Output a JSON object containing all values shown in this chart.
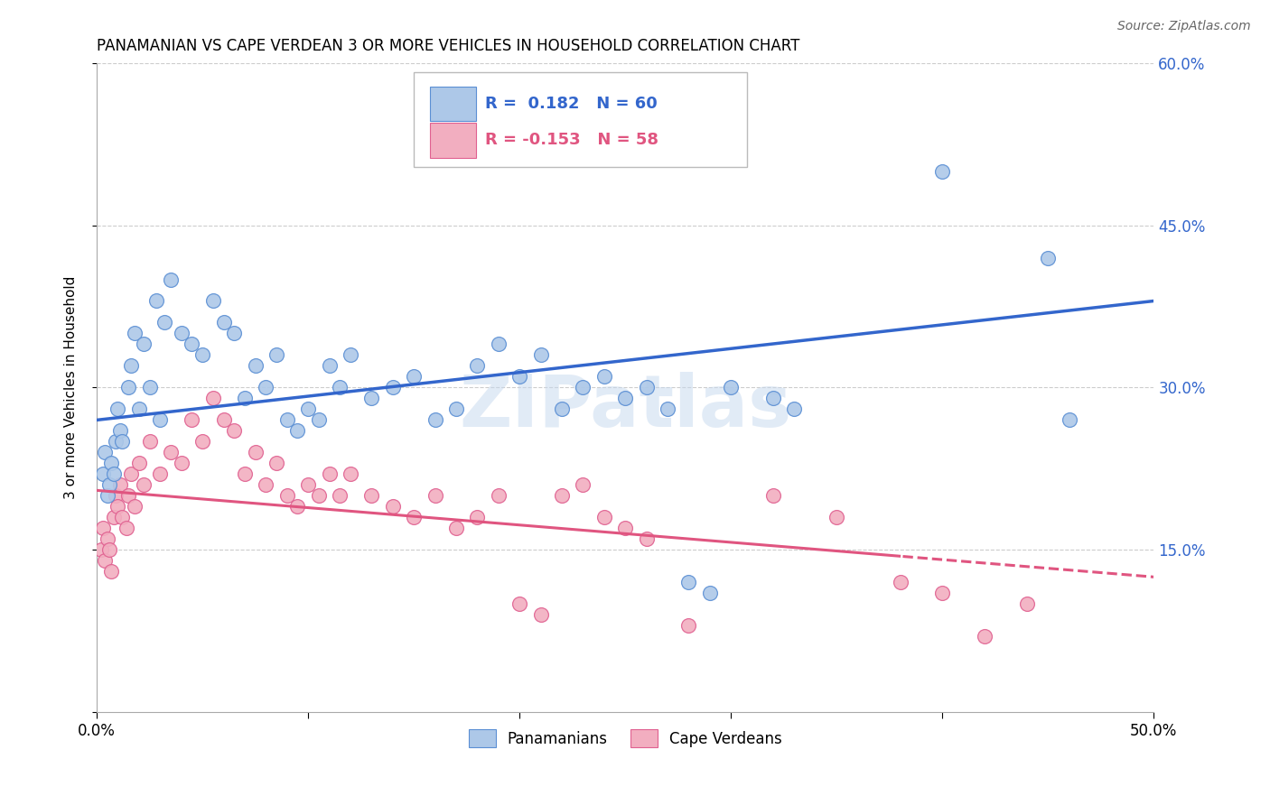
{
  "title": "PANAMANIAN VS CAPE VERDEAN 3 OR MORE VEHICLES IN HOUSEHOLD CORRELATION CHART",
  "source": "Source: ZipAtlas.com",
  "ylabel": "3 or more Vehicles in Household",
  "xlim": [
    0,
    50
  ],
  "ylim": [
    0,
    60
  ],
  "blue_R": 0.182,
  "blue_N": 60,
  "pink_R": -0.153,
  "pink_N": 58,
  "legend_label_blue": "Panamanians",
  "legend_label_pink": "Cape Verdeans",
  "blue_color": "#adc8e8",
  "pink_color": "#f2aec0",
  "blue_edge_color": "#5b8fd4",
  "pink_edge_color": "#e06090",
  "blue_line_color": "#3366cc",
  "pink_line_color": "#e05580",
  "watermark": "ZIPatlas",
  "blue_line_y0": 27.0,
  "blue_line_y50": 38.0,
  "pink_line_y0": 20.5,
  "pink_line_y50": 12.5,
  "blue_scatter_x": [
    0.3,
    0.4,
    0.5,
    0.6,
    0.7,
    0.8,
    0.9,
    1.0,
    1.1,
    1.2,
    1.5,
    1.6,
    1.8,
    2.0,
    2.2,
    2.5,
    2.8,
    3.0,
    3.2,
    3.5,
    4.0,
    4.5,
    5.0,
    5.5,
    6.0,
    6.5,
    7.0,
    7.5,
    8.0,
    8.5,
    9.0,
    9.5,
    10.0,
    10.5,
    11.0,
    11.5,
    12.0,
    13.0,
    14.0,
    15.0,
    16.0,
    17.0,
    18.0,
    19.0,
    20.0,
    21.0,
    22.0,
    23.0,
    24.0,
    25.0,
    26.0,
    27.0,
    28.0,
    29.0,
    30.0,
    32.0,
    33.0,
    40.0,
    45.0,
    46.0
  ],
  "blue_scatter_y": [
    22,
    24,
    20,
    21,
    23,
    22,
    25,
    28,
    26,
    25,
    30,
    32,
    35,
    28,
    34,
    30,
    38,
    27,
    36,
    40,
    35,
    34,
    33,
    38,
    36,
    35,
    29,
    32,
    30,
    33,
    27,
    26,
    28,
    27,
    32,
    30,
    33,
    29,
    30,
    31,
    27,
    28,
    32,
    34,
    31,
    33,
    28,
    30,
    31,
    29,
    30,
    28,
    12,
    11,
    30,
    29,
    28,
    50,
    42,
    27
  ],
  "pink_scatter_x": [
    0.2,
    0.3,
    0.4,
    0.5,
    0.6,
    0.7,
    0.8,
    0.9,
    1.0,
    1.1,
    1.2,
    1.4,
    1.5,
    1.6,
    1.8,
    2.0,
    2.2,
    2.5,
    3.0,
    3.5,
    4.0,
    4.5,
    5.0,
    5.5,
    6.0,
    6.5,
    7.0,
    7.5,
    8.0,
    8.5,
    9.0,
    9.5,
    10.0,
    10.5,
    11.0,
    11.5,
    12.0,
    13.0,
    14.0,
    15.0,
    16.0,
    17.0,
    18.0,
    19.0,
    20.0,
    21.0,
    22.0,
    23.0,
    24.0,
    25.0,
    26.0,
    28.0,
    32.0,
    35.0,
    38.0,
    40.0,
    42.0,
    44.0
  ],
  "pink_scatter_y": [
    15,
    17,
    14,
    16,
    15,
    13,
    18,
    20,
    19,
    21,
    18,
    17,
    20,
    22,
    19,
    23,
    21,
    25,
    22,
    24,
    23,
    27,
    25,
    29,
    27,
    26,
    22,
    24,
    21,
    23,
    20,
    19,
    21,
    20,
    22,
    20,
    22,
    20,
    19,
    18,
    20,
    17,
    18,
    20,
    10,
    9,
    20,
    21,
    18,
    17,
    16,
    8,
    20,
    18,
    12,
    11,
    7,
    10
  ]
}
